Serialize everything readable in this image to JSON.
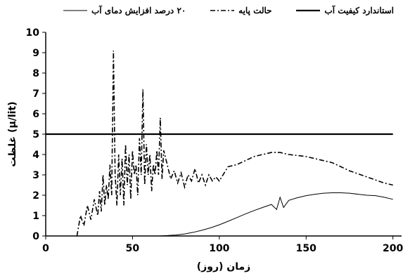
{
  "chart_data": {
    "type": "line",
    "xlabel": "زمان (روز)",
    "ylabel": "غلظت (µ/lit)",
    "xlim": [
      0,
      205
    ],
    "ylim": [
      0,
      10
    ],
    "xticks": [
      "0",
      "50",
      "100",
      "150",
      "200"
    ],
    "yticks": [
      "0",
      "1",
      "2",
      "3",
      "4",
      "5",
      "6",
      "7",
      "8",
      "9",
      "10"
    ],
    "grid": false,
    "legend_position": "top",
    "series": [
      {
        "name": "استاندارد کیفیت آب",
        "style": "solid-thick",
        "x": [
          0,
          200
        ],
        "y": [
          5,
          5
        ]
      },
      {
        "name": "حالت پایه",
        "style": "dash-dot",
        "x": [
          18,
          20,
          22,
          24,
          26,
          28,
          30,
          31,
          32,
          33,
          34,
          35,
          36,
          37,
          38,
          39,
          40,
          41,
          42,
          43,
          44,
          45,
          46,
          47,
          48,
          49,
          50,
          51,
          52,
          53,
          54,
          55,
          56,
          57,
          58,
          59,
          60,
          61,
          62,
          63,
          64,
          65,
          66,
          67,
          68,
          70,
          72,
          74,
          76,
          78,
          80,
          82,
          84,
          86,
          88,
          90,
          92,
          94,
          96,
          98,
          100,
          105,
          110,
          115,
          120,
          125,
          130,
          135,
          140,
          145,
          150,
          155,
          160,
          165,
          170,
          175,
          180,
          185,
          190,
          195,
          200
        ],
        "y": [
          0,
          1.0,
          0.5,
          1.5,
          0.8,
          1.8,
          1.0,
          2.2,
          1.2,
          3.0,
          1.5,
          2.5,
          1.8,
          3.5,
          2.0,
          9.1,
          3.0,
          1.5,
          4.0,
          2.0,
          3.8,
          1.5,
          4.5,
          2.5,
          4.0,
          1.8,
          4.2,
          3.0,
          3.5,
          2.0,
          4.8,
          3.0,
          7.2,
          2.5,
          4.5,
          3.0,
          4.0,
          2.2,
          3.5,
          3.0,
          4.2,
          3.0,
          5.8,
          2.8,
          4.2,
          3.5,
          2.8,
          3.2,
          2.6,
          3.1,
          2.4,
          3.0,
          2.7,
          3.3,
          2.6,
          3.0,
          2.5,
          3.0,
          2.7,
          2.9,
          2.7,
          3.4,
          3.5,
          3.7,
          3.9,
          4.0,
          4.1,
          4.1,
          4.0,
          3.95,
          3.9,
          3.8,
          3.7,
          3.6,
          3.4,
          3.2,
          3.05,
          2.9,
          2.75,
          2.6,
          2.5
        ]
      },
      {
        "name": "۲۰ درصد افزایش دمای آب",
        "style": "solid-thin",
        "x": [
          65,
          70,
          75,
          80,
          85,
          90,
          95,
          100,
          105,
          110,
          115,
          120,
          125,
          130,
          133,
          135,
          137,
          140,
          145,
          150,
          155,
          160,
          165,
          170,
          175,
          180,
          185,
          190,
          195,
          200
        ],
        "y": [
          0,
          0.02,
          0.05,
          0.1,
          0.18,
          0.28,
          0.4,
          0.55,
          0.72,
          0.9,
          1.08,
          1.25,
          1.4,
          1.55,
          1.3,
          1.9,
          1.4,
          1.75,
          1.88,
          1.98,
          2.05,
          2.1,
          2.12,
          2.12,
          2.1,
          2.05,
          2.0,
          1.98,
          1.9,
          1.8
        ]
      }
    ]
  }
}
